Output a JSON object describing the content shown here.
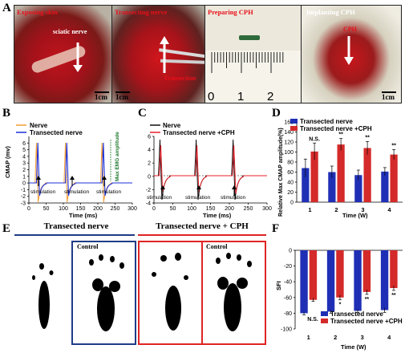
{
  "panel_letters": {
    "a": "A",
    "b": "B",
    "c": "C",
    "d": "D",
    "e": "E",
    "f": "F"
  },
  "panel_a": {
    "photos": [
      {
        "title": "Exposing skin",
        "inner_label": "sciatic nerve",
        "scale": "1cm"
      },
      {
        "title": "Transecting nerve",
        "inner_label": "Transection",
        "scale": "1cm"
      },
      {
        "title": "Preparing CPH",
        "ruler_numbers": [
          "0",
          "1",
          "2"
        ]
      },
      {
        "title": "Implanting CPH",
        "inner_label": "CPH",
        "scale": "1cm"
      }
    ]
  },
  "panel_b": {
    "legend": [
      "Nerve",
      "Transected nerve"
    ],
    "ylabel": "CMAP (mv)",
    "xlabel": "Time (ms)",
    "yticks": [
      "-3",
      "-2",
      "-1",
      "0",
      "1",
      "2",
      "3",
      "4",
      "5",
      "6"
    ],
    "xticks": [
      "0",
      "50",
      "100",
      "150",
      "200",
      "250",
      "300"
    ],
    "annot": "stimulation",
    "amp_label": "Max EMG amplitude",
    "colors": {
      "nerve": "#f39c34",
      "transected": "#1b2fd8"
    }
  },
  "panel_c": {
    "legend": [
      "Nerve",
      "Transected nerve +CPH"
    ],
    "xlabel": "Time (ms)",
    "yticks": [
      "-4",
      "-2",
      "0",
      "2",
      "4",
      "6"
    ],
    "xticks": [
      "0",
      "50",
      "100",
      "150",
      "200",
      "250",
      "300"
    ],
    "annot": "stimulation",
    "colors": {
      "nerve": "#111111",
      "cph": "#e8202a"
    }
  },
  "panel_d": {
    "ylabel": "Relative Max CMAP amplitude(%)",
    "xlabel": "Time (W)",
    "yticks": [
      "0",
      "20",
      "40",
      "60",
      "80",
      "100",
      "120",
      "140",
      "160"
    ],
    "sig": [
      "N.S.",
      "**",
      "**",
      "**"
    ]
  },
  "panel_e": {
    "left_title": "Transected nerve",
    "right_title": "Transected nerve + CPH",
    "control": "Control",
    "colors": {
      "left": "#1f3c88",
      "right": "#e02424"
    }
  },
  "panel_f": {
    "ylabel": "SFI",
    "xlabel": "Time (W)",
    "yticks": [
      "0",
      "-20",
      "-40",
      "-60",
      "-80",
      "-100"
    ],
    "sig": [
      "N.S.",
      "*",
      "**",
      "**"
    ]
  },
  "chart_data": [
    {
      "id": "D",
      "type": "bar",
      "categories": [
        "1",
        "2",
        "3",
        "4"
      ],
      "xlabel": "Time (W)",
      "ylabel": "Relative Max CMAP amplitude(%)",
      "ylim": [
        0,
        160
      ],
      "series": [
        {
          "name": "Transected nerve",
          "color": "#1f2fb5",
          "values": [
            68,
            60,
            54,
            61
          ],
          "errors": [
            18,
            12,
            10,
            8
          ]
        },
        {
          "name": "Transected nerve +CPH",
          "color": "#d42a2a",
          "values": [
            101,
            115,
            108,
            95
          ],
          "errors": [
            17,
            12,
            13,
            10
          ]
        }
      ],
      "legend": "top-right"
    },
    {
      "id": "F",
      "type": "bar",
      "categories": [
        "1",
        "2",
        "3",
        "4"
      ],
      "xlabel": "Time (W)",
      "ylabel": "SFI",
      "ylim": [
        -100,
        0
      ],
      "series": [
        {
          "name": "Transected nerve",
          "color": "#1f2fb5",
          "values": [
            -80,
            -78,
            -77,
            -76
          ],
          "errors": [
            2,
            2,
            2,
            3
          ]
        },
        {
          "name": "Transected nerve +CPH",
          "color": "#d42a2a",
          "values": [
            -63,
            -60,
            -53,
            -48
          ],
          "errors": [
            2,
            3,
            3,
            3
          ]
        }
      ],
      "legend": "bottom-right"
    }
  ]
}
